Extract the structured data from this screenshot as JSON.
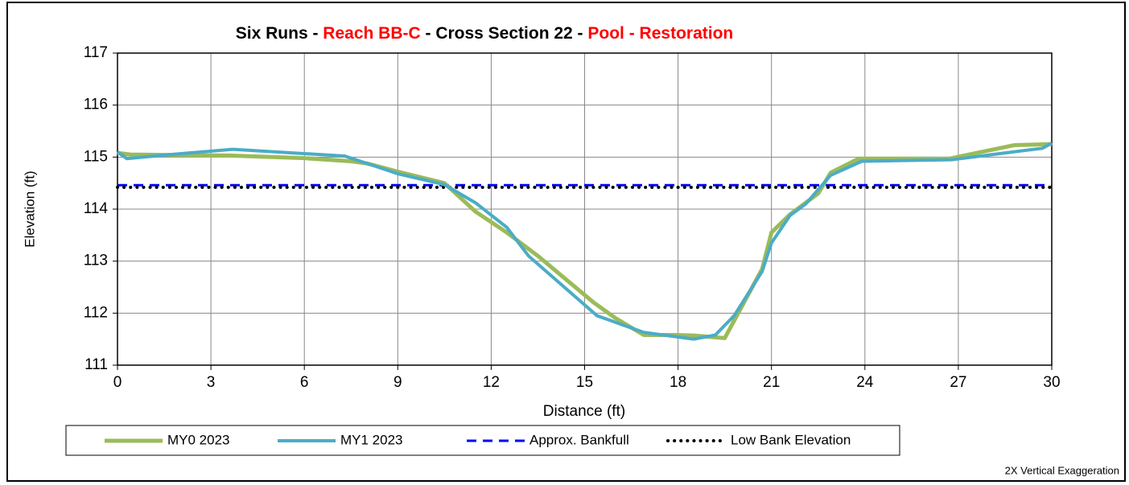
{
  "chart_data": {
    "type": "line",
    "title_segments": [
      {
        "text": "Six Runs - ",
        "color": "#000000"
      },
      {
        "text": "Reach BB-C",
        "color": "#ff0000"
      },
      {
        "text": " - Cross Section 22 - ",
        "color": "#000000"
      },
      {
        "text": "Pool - Restoration",
        "color": "#ff0000"
      }
    ],
    "x_label": "Distance (ft)",
    "y_label": "Elevation (ft)",
    "note": "2X Vertical Exaggeration",
    "xlim": [
      0,
      30
    ],
    "xticks": [
      0,
      3,
      6,
      9,
      12,
      15,
      18,
      21,
      24,
      27,
      30
    ],
    "ylim": [
      111,
      117
    ],
    "yticks": [
      111,
      112,
      113,
      114,
      115,
      116,
      117
    ],
    "grid": true,
    "series": [
      {
        "name": "MY0 2023",
        "color": "#9bbb59",
        "dash": "solid",
        "x": [
          0,
          0.4,
          3.6,
          6,
          7.5,
          8,
          9,
          10.5,
          11.5,
          12.5,
          13.5,
          15.3,
          16,
          16.9,
          17.9,
          18.5,
          19.5,
          20.7,
          21,
          21.6,
          22.5,
          22.9,
          23.8,
          26.7,
          28.8,
          30
        ],
        "values": [
          115.08,
          115.05,
          115.03,
          114.98,
          114.92,
          114.88,
          114.72,
          114.5,
          113.95,
          113.55,
          113.1,
          112.2,
          111.9,
          111.58,
          111.58,
          111.57,
          111.52,
          112.85,
          113.55,
          113.9,
          114.3,
          114.7,
          114.97,
          114.97,
          115.23,
          115.25
        ]
      },
      {
        "name": "MY1 2023",
        "color": "#4bacc6",
        "dash": "solid",
        "x": [
          0,
          0.3,
          1.7,
          3.7,
          7.3,
          9,
          10.5,
          11.5,
          12.5,
          13.2,
          15.4,
          16.9,
          18.5,
          19.2,
          19.8,
          20.7,
          21,
          21.6,
          22.1,
          22.9,
          23.9,
          26.8,
          28.1,
          29.7,
          30
        ],
        "values": [
          115.1,
          114.97,
          115.05,
          115.15,
          115.02,
          114.68,
          114.47,
          114.12,
          113.65,
          113.1,
          111.95,
          111.63,
          111.5,
          111.58,
          111.95,
          112.8,
          113.35,
          113.88,
          114.1,
          114.65,
          114.92,
          114.95,
          115.05,
          115.17,
          115.27
        ]
      },
      {
        "name": "Approx. Bankfull",
        "color": "#0000ff",
        "dash": "dashed",
        "x": [
          0,
          30
        ],
        "values": [
          114.46,
          114.46
        ]
      },
      {
        "name": "Low Bank Elevation",
        "color": "#000000",
        "dash": "dotted",
        "x": [
          0,
          30
        ],
        "values": [
          114.42,
          114.42
        ]
      }
    ]
  }
}
